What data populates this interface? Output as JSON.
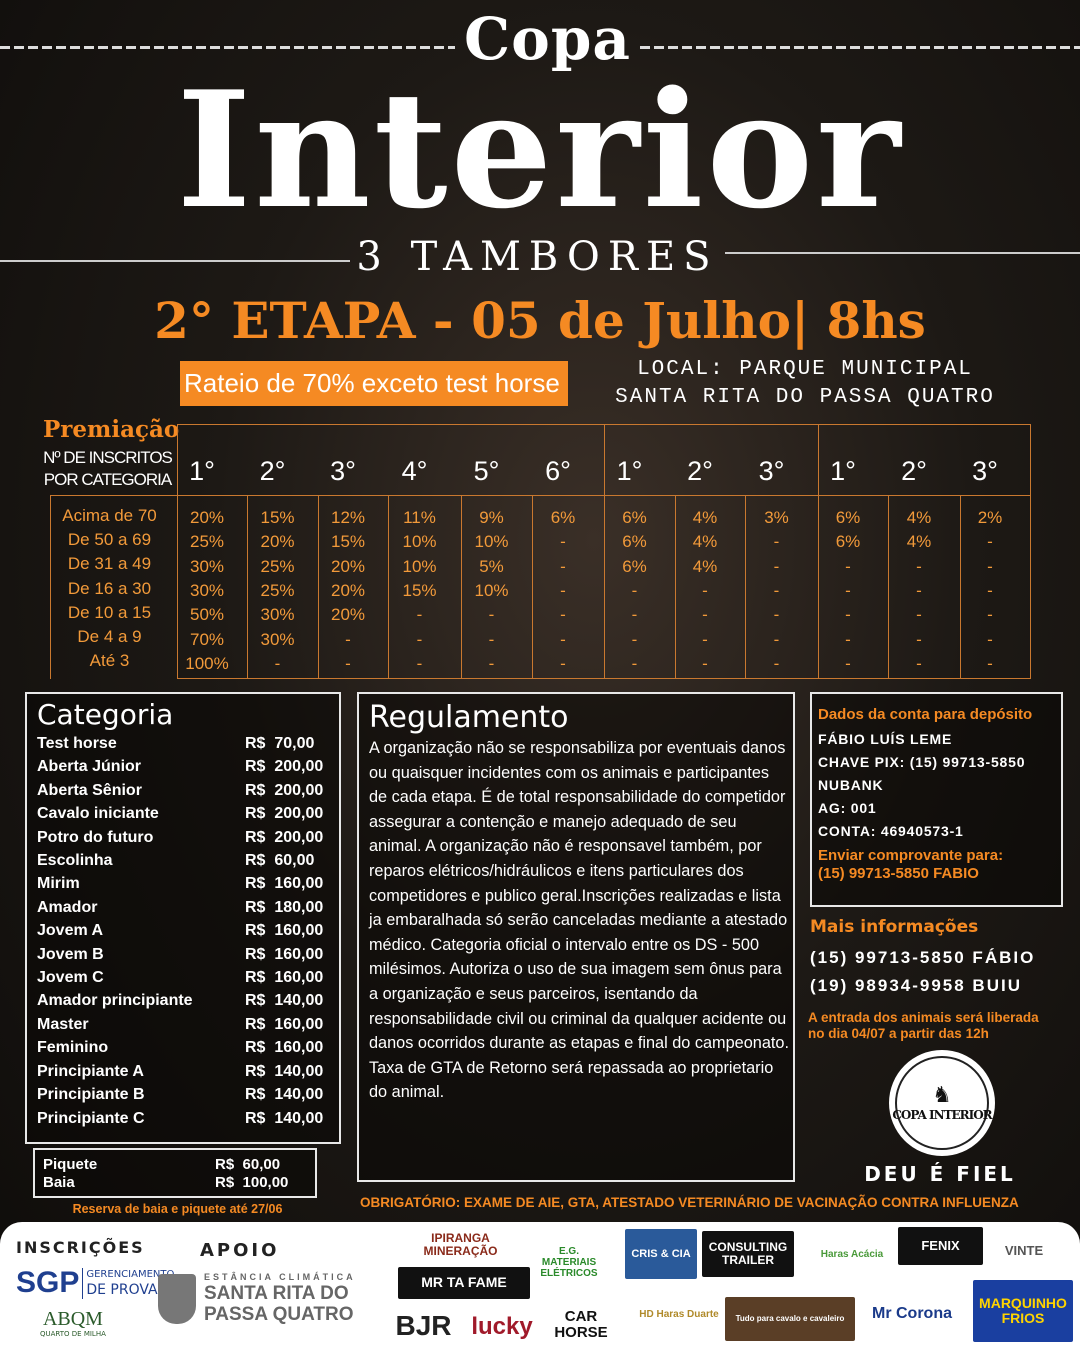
{
  "header": {
    "copa": "Copa",
    "title": "Interior",
    "subtitle": "3 TAMBORES",
    "stage": "2° ETAPA - 05 de Julho| 8hs",
    "rateio": "Rateio de 70% exceto test horse",
    "local_line1": "LOCAL: PARQUE MUNICIPAL",
    "local_line2": "SANTA RITA DO PASSA QUATRO"
  },
  "premiacao": {
    "title": "Premiação",
    "sub1": "Nº DE INSCRITOS",
    "sub2": "POR CATEGORIA",
    "headers": [
      "1°",
      "2°",
      "3°",
      "4°",
      "5°",
      "6°",
      "1°",
      "2°",
      "3°",
      "1°",
      "2°",
      "3°"
    ],
    "rows": [
      {
        "label": "Acima de 70",
        "values": [
          "20%",
          "15%",
          "12%",
          "11%",
          "9%",
          "6%",
          "6%",
          "4%",
          "3%",
          "6%",
          "4%",
          "2%"
        ]
      },
      {
        "label": "De 50 a 69",
        "values": [
          "25%",
          "20%",
          "15%",
          "10%",
          "10%",
          "-",
          "6%",
          "4%",
          "-",
          "6%",
          "4%",
          "-"
        ]
      },
      {
        "label": "De 31 a 49",
        "values": [
          "30%",
          "25%",
          "20%",
          "10%",
          "5%",
          "-",
          "6%",
          "4%",
          "-",
          "-",
          "-",
          "-"
        ]
      },
      {
        "label": "De 16 a 30",
        "values": [
          "30%",
          "25%",
          "20%",
          "15%",
          "10%",
          "-",
          "-",
          "-",
          "-",
          "-",
          "-",
          "-"
        ]
      },
      {
        "label": "De 10 a 15",
        "values": [
          "50%",
          "30%",
          "20%",
          "-",
          "-",
          "-",
          "-",
          "-",
          "-",
          "-",
          "-",
          "-"
        ]
      },
      {
        "label": "De 4 a 9",
        "values": [
          "70%",
          "30%",
          "-",
          "-",
          "-",
          "-",
          "-",
          "-",
          "-",
          "-",
          "-",
          "-"
        ]
      },
      {
        "label": "Até 3",
        "values": [
          "100%",
          "-",
          "-",
          "-",
          "-",
          "-",
          "-",
          "-",
          "-",
          "-",
          "-",
          "-"
        ]
      }
    ]
  },
  "categoria": {
    "title": "Categoria",
    "items": [
      {
        "name": "Test horse",
        "price": "R$  70,00"
      },
      {
        "name": "Aberta Júnior",
        "price": "R$  200,00"
      },
      {
        "name": "Aberta Sênior",
        "price": "R$  200,00"
      },
      {
        "name": "Cavalo iniciante",
        "price": "R$  200,00"
      },
      {
        "name": "Potro do futuro",
        "price": "R$  200,00"
      },
      {
        "name": "Escolinha",
        "price": "R$  60,00"
      },
      {
        "name": "Mirim",
        "price": "R$  160,00"
      },
      {
        "name": "Amador",
        "price": "R$  180,00"
      },
      {
        "name": "Jovem A",
        "price": "R$  160,00"
      },
      {
        "name": "Jovem B",
        "price": "R$  160,00"
      },
      {
        "name": "Jovem C",
        "price": "R$  160,00"
      },
      {
        "name": "Amador principiante",
        "price": "R$  140,00"
      },
      {
        "name": "Master",
        "price": "R$  160,00"
      },
      {
        "name": "Feminino",
        "price": "R$  160,00"
      },
      {
        "name": "Principiante A",
        "price": "R$  140,00"
      },
      {
        "name": "Principiante B",
        "price": "R$  140,00"
      },
      {
        "name": "Principiante C",
        "price": "R$  140,00"
      }
    ],
    "extras": [
      {
        "name": "Piquete",
        "price": "R$  60,00"
      },
      {
        "name": "Baia",
        "price": "R$  100,00"
      }
    ],
    "reserva": "Reserva de baia e piquete até 27/06"
  },
  "regulamento": {
    "title": "Regulamento",
    "text": "A organização não se responsabiliza por eventuais danos ou quaisquer incidentes com os animais e participantes de cada etapa. É de total responsabilidade do competidor assegurar a contenção e manejo adequado de seu animal. A organização não é responsavel também, por reparos elétricos/hidráulicos e itens particulares dos competidores e publico geral.Inscrições realizadas e lista ja embaralhada só serão canceladas mediante a atestado médico. Categoria oficial o intervalo entre os DS - 500 milésimos. Autoriza o uso de sua imagem sem ônus para a organização e seus parceiros, isentando da responsabilidade civil ou criminal da qualquer acidente ou danos ocorridos durante as etapas e final do campeonato. Taxa de GTA de Retorno será repassada ao proprietario do animal."
  },
  "conta": {
    "title": "Dados da conta para depósito",
    "lines": [
      "FÁBIO LUÍS LEME",
      "CHAVE PIX: (15) 99713-5850",
      "NUBANK",
      "AG: 001",
      "CONTA: 46940573-1"
    ],
    "enviar1": "Enviar comprovante para:",
    "enviar2": "(15) 99713-5850  FABIO"
  },
  "info": {
    "title": "Mais informações",
    "phones": [
      "(15) 99713-5850 FÁBIO",
      "(19) 98934-9958 BUIU"
    ],
    "entrada1": "A entrada dos animais será liberada",
    "entrada2": "no dia 04/07 a partir das 12h",
    "logo_text": "COPA INTERIOR",
    "motto": "DEU É FIEL"
  },
  "obrigatorio": "OBRIGATÓRIO:  EXAME DE AIE, GTA, ATESTADO VETERINÁRIO DE VACINAÇÃO CONTRA INFLUENZA",
  "footer": {
    "inscricoes": "INSCRIÇÕES",
    "apoio": "APOIO",
    "sgp": "SGP",
    "sgp_sub1": "GERENCIAMENTO",
    "sgp_sub2": "DE PROVAS",
    "abqm": "ABQM",
    "abqm_sub": "QUARTO DE MILHA",
    "santa_rita_sub": "ESTÂNCIA CLIMÁTICA",
    "santa_rita1": "SANTA RITA DO",
    "santa_rita2": "PASSA QUATRO",
    "sponsors": [
      "IPIRANGA MINERAÇÃO",
      "E.G. MATERIAIS ELÉTRICOS",
      "CRIS & CIA",
      "CONSULTING TRAILER",
      "Haras Acácia",
      "FENIX",
      "VINTE",
      "MR TA FAME",
      "BJR",
      "lucky",
      "CAR HORSE",
      "HD Haras Duarte",
      "Tudo para cavalo e cavaleiro",
      "Mr Corona",
      "MARQUINHO FRIOS"
    ]
  },
  "colors": {
    "accent": "#f58a23",
    "text": "#ffffff"
  }
}
